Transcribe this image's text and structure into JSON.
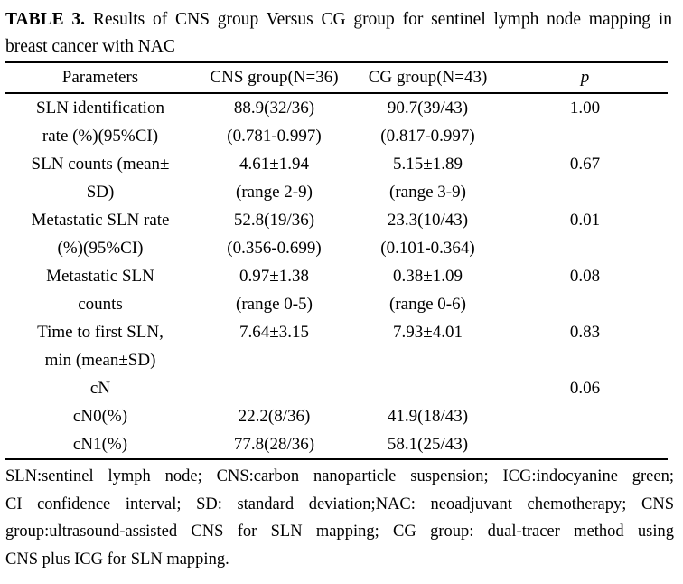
{
  "title": {
    "label": "TABLE 3.",
    "line1": "Results of CNS group Versus CG group for sentinel lymph node mapping in",
    "line2": "breast cancer with NAC"
  },
  "table": {
    "headers": [
      "Parameters",
      "CNS group(N=36)",
      "CG group(N=43)",
      "p"
    ],
    "rows": [
      [
        "SLN identification",
        "88.9(32/36)",
        "90.7(39/43)",
        "1.00"
      ],
      [
        "rate (%)(95%CI)",
        "(0.781-0.997)",
        "(0.817-0.997)",
        ""
      ],
      [
        "SLN counts (mean±",
        "4.61±1.94",
        "5.15±1.89",
        "0.67"
      ],
      [
        "SD)",
        "(range 2-9)",
        "(range 3-9)",
        ""
      ],
      [
        "Metastatic SLN rate",
        "52.8(19/36)",
        "23.3(10/43)",
        "0.01"
      ],
      [
        "(%)(95%CI)",
        "(0.356-0.699)",
        "(0.101-0.364)",
        ""
      ],
      [
        "Metastatic SLN",
        "0.97±1.38",
        "0.38±1.09",
        "0.08"
      ],
      [
        "counts",
        "(range 0-5)",
        "(range 0-6)",
        ""
      ],
      [
        "Time to first SLN,",
        "7.64±3.15",
        "7.93±4.01",
        "0.83"
      ],
      [
        "min (mean±SD)",
        "",
        "",
        ""
      ],
      [
        "cN",
        "",
        "",
        "0.06"
      ],
      [
        "cN0(%)",
        "22.2(8/36)",
        "41.9(18/43)",
        ""
      ],
      [
        "cN1(%)",
        "77.8(28/36)",
        "58.1(25/43)",
        ""
      ]
    ]
  },
  "footnote": {
    "lines": [
      "SLN:sentinel lymph node; CNS:carbon nanoparticle suspension; ICG:indocyanine green;",
      "CI confidence interval; SD: standard deviation;NAC: neoadjuvant chemotherapy; CNS",
      "group:ultrasound-assisted CNS for SLN mapping; CG group: dual-tracer method using",
      "CNS plus ICG for SLN mapping."
    ]
  },
  "colors": {
    "text": "#000000",
    "background": "#ffffff",
    "rule": "#000000"
  }
}
